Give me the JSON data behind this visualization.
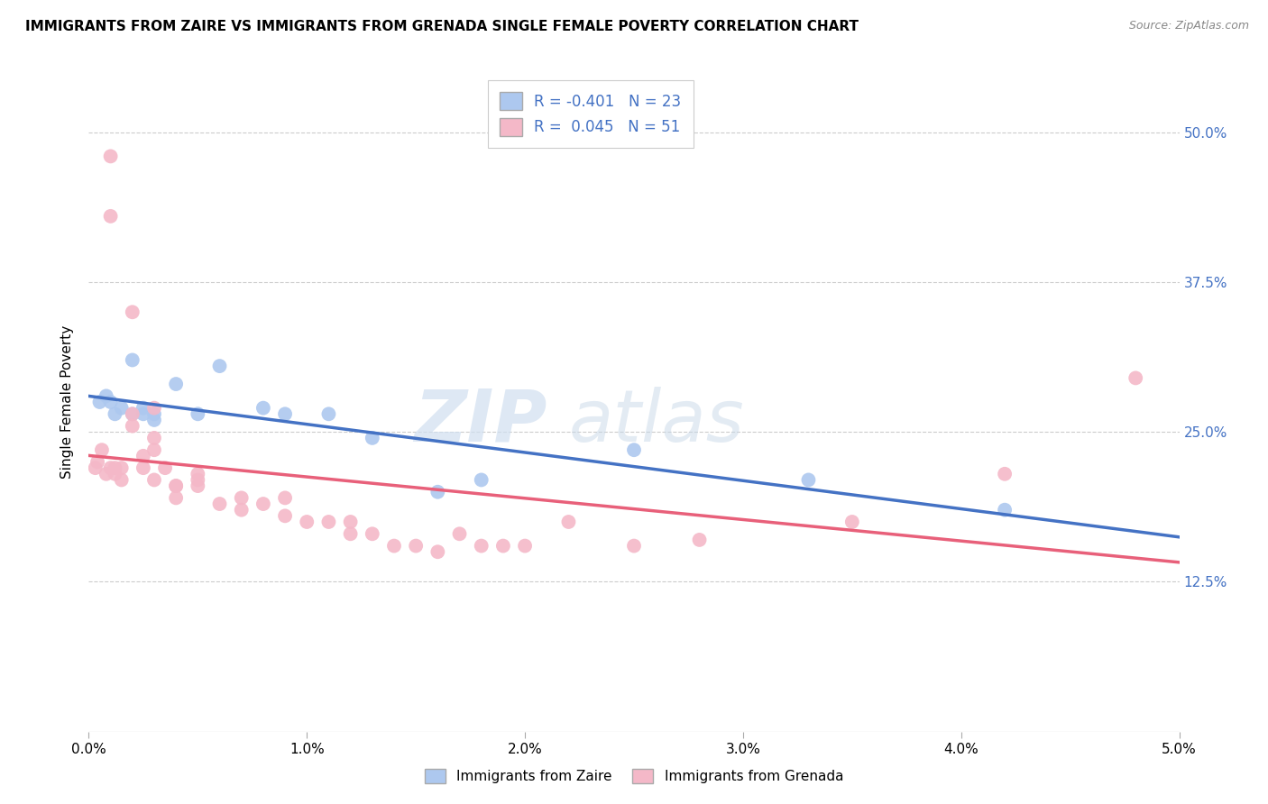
{
  "title": "IMMIGRANTS FROM ZAIRE VS IMMIGRANTS FROM GRENADA SINGLE FEMALE POVERTY CORRELATION CHART",
  "source": "Source: ZipAtlas.com",
  "xlabel_left": "Immigrants from Zaire",
  "xlabel_right": "Immigrants from Grenada",
  "ylabel": "Single Female Poverty",
  "zaire_R": -0.401,
  "zaire_N": 23,
  "grenada_R": 0.045,
  "grenada_N": 51,
  "zaire_color": "#adc8ef",
  "zaire_line_color": "#4472c4",
  "grenada_color": "#f4b8c8",
  "grenada_line_color": "#e8607a",
  "watermark_text": "ZIP",
  "watermark_text2": "atlas",
  "xlim": [
    0.0,
    0.05
  ],
  "ylim": [
    0.0,
    0.55
  ],
  "yticks": [
    0.125,
    0.25,
    0.375,
    0.5
  ],
  "ytick_labels": [
    "12.5%",
    "25.0%",
    "37.5%",
    "50.0%"
  ],
  "xticks": [
    0.0,
    0.01,
    0.02,
    0.03,
    0.04,
    0.05
  ],
  "xtick_labels": [
    "0.0%",
    "1.0%",
    "2.0%",
    "3.0%",
    "4.0%",
    "5.0%"
  ],
  "zaire_x": [
    0.0005,
    0.0008,
    0.001,
    0.0012,
    0.0015,
    0.002,
    0.002,
    0.0025,
    0.0025,
    0.003,
    0.003,
    0.004,
    0.005,
    0.006,
    0.008,
    0.009,
    0.011,
    0.013,
    0.016,
    0.018,
    0.025,
    0.033,
    0.042
  ],
  "zaire_y": [
    0.275,
    0.28,
    0.275,
    0.265,
    0.27,
    0.31,
    0.265,
    0.27,
    0.265,
    0.26,
    0.265,
    0.29,
    0.265,
    0.305,
    0.27,
    0.265,
    0.265,
    0.245,
    0.2,
    0.21,
    0.235,
    0.21,
    0.185
  ],
  "grenada_x": [
    0.0003,
    0.0004,
    0.0006,
    0.0008,
    0.001,
    0.001,
    0.001,
    0.0012,
    0.0012,
    0.0015,
    0.0015,
    0.002,
    0.002,
    0.002,
    0.0025,
    0.0025,
    0.003,
    0.003,
    0.003,
    0.003,
    0.0035,
    0.004,
    0.004,
    0.004,
    0.005,
    0.005,
    0.005,
    0.006,
    0.007,
    0.007,
    0.008,
    0.009,
    0.009,
    0.01,
    0.011,
    0.012,
    0.012,
    0.013,
    0.014,
    0.015,
    0.016,
    0.017,
    0.018,
    0.019,
    0.02,
    0.022,
    0.025,
    0.028,
    0.035,
    0.042,
    0.048
  ],
  "grenada_y": [
    0.22,
    0.225,
    0.235,
    0.215,
    0.43,
    0.48,
    0.22,
    0.22,
    0.215,
    0.22,
    0.21,
    0.35,
    0.265,
    0.255,
    0.23,
    0.22,
    0.27,
    0.245,
    0.235,
    0.21,
    0.22,
    0.205,
    0.205,
    0.195,
    0.21,
    0.215,
    0.205,
    0.19,
    0.195,
    0.185,
    0.19,
    0.195,
    0.18,
    0.175,
    0.175,
    0.175,
    0.165,
    0.165,
    0.155,
    0.155,
    0.15,
    0.165,
    0.155,
    0.155,
    0.155,
    0.175,
    0.155,
    0.16,
    0.175,
    0.215,
    0.295
  ]
}
